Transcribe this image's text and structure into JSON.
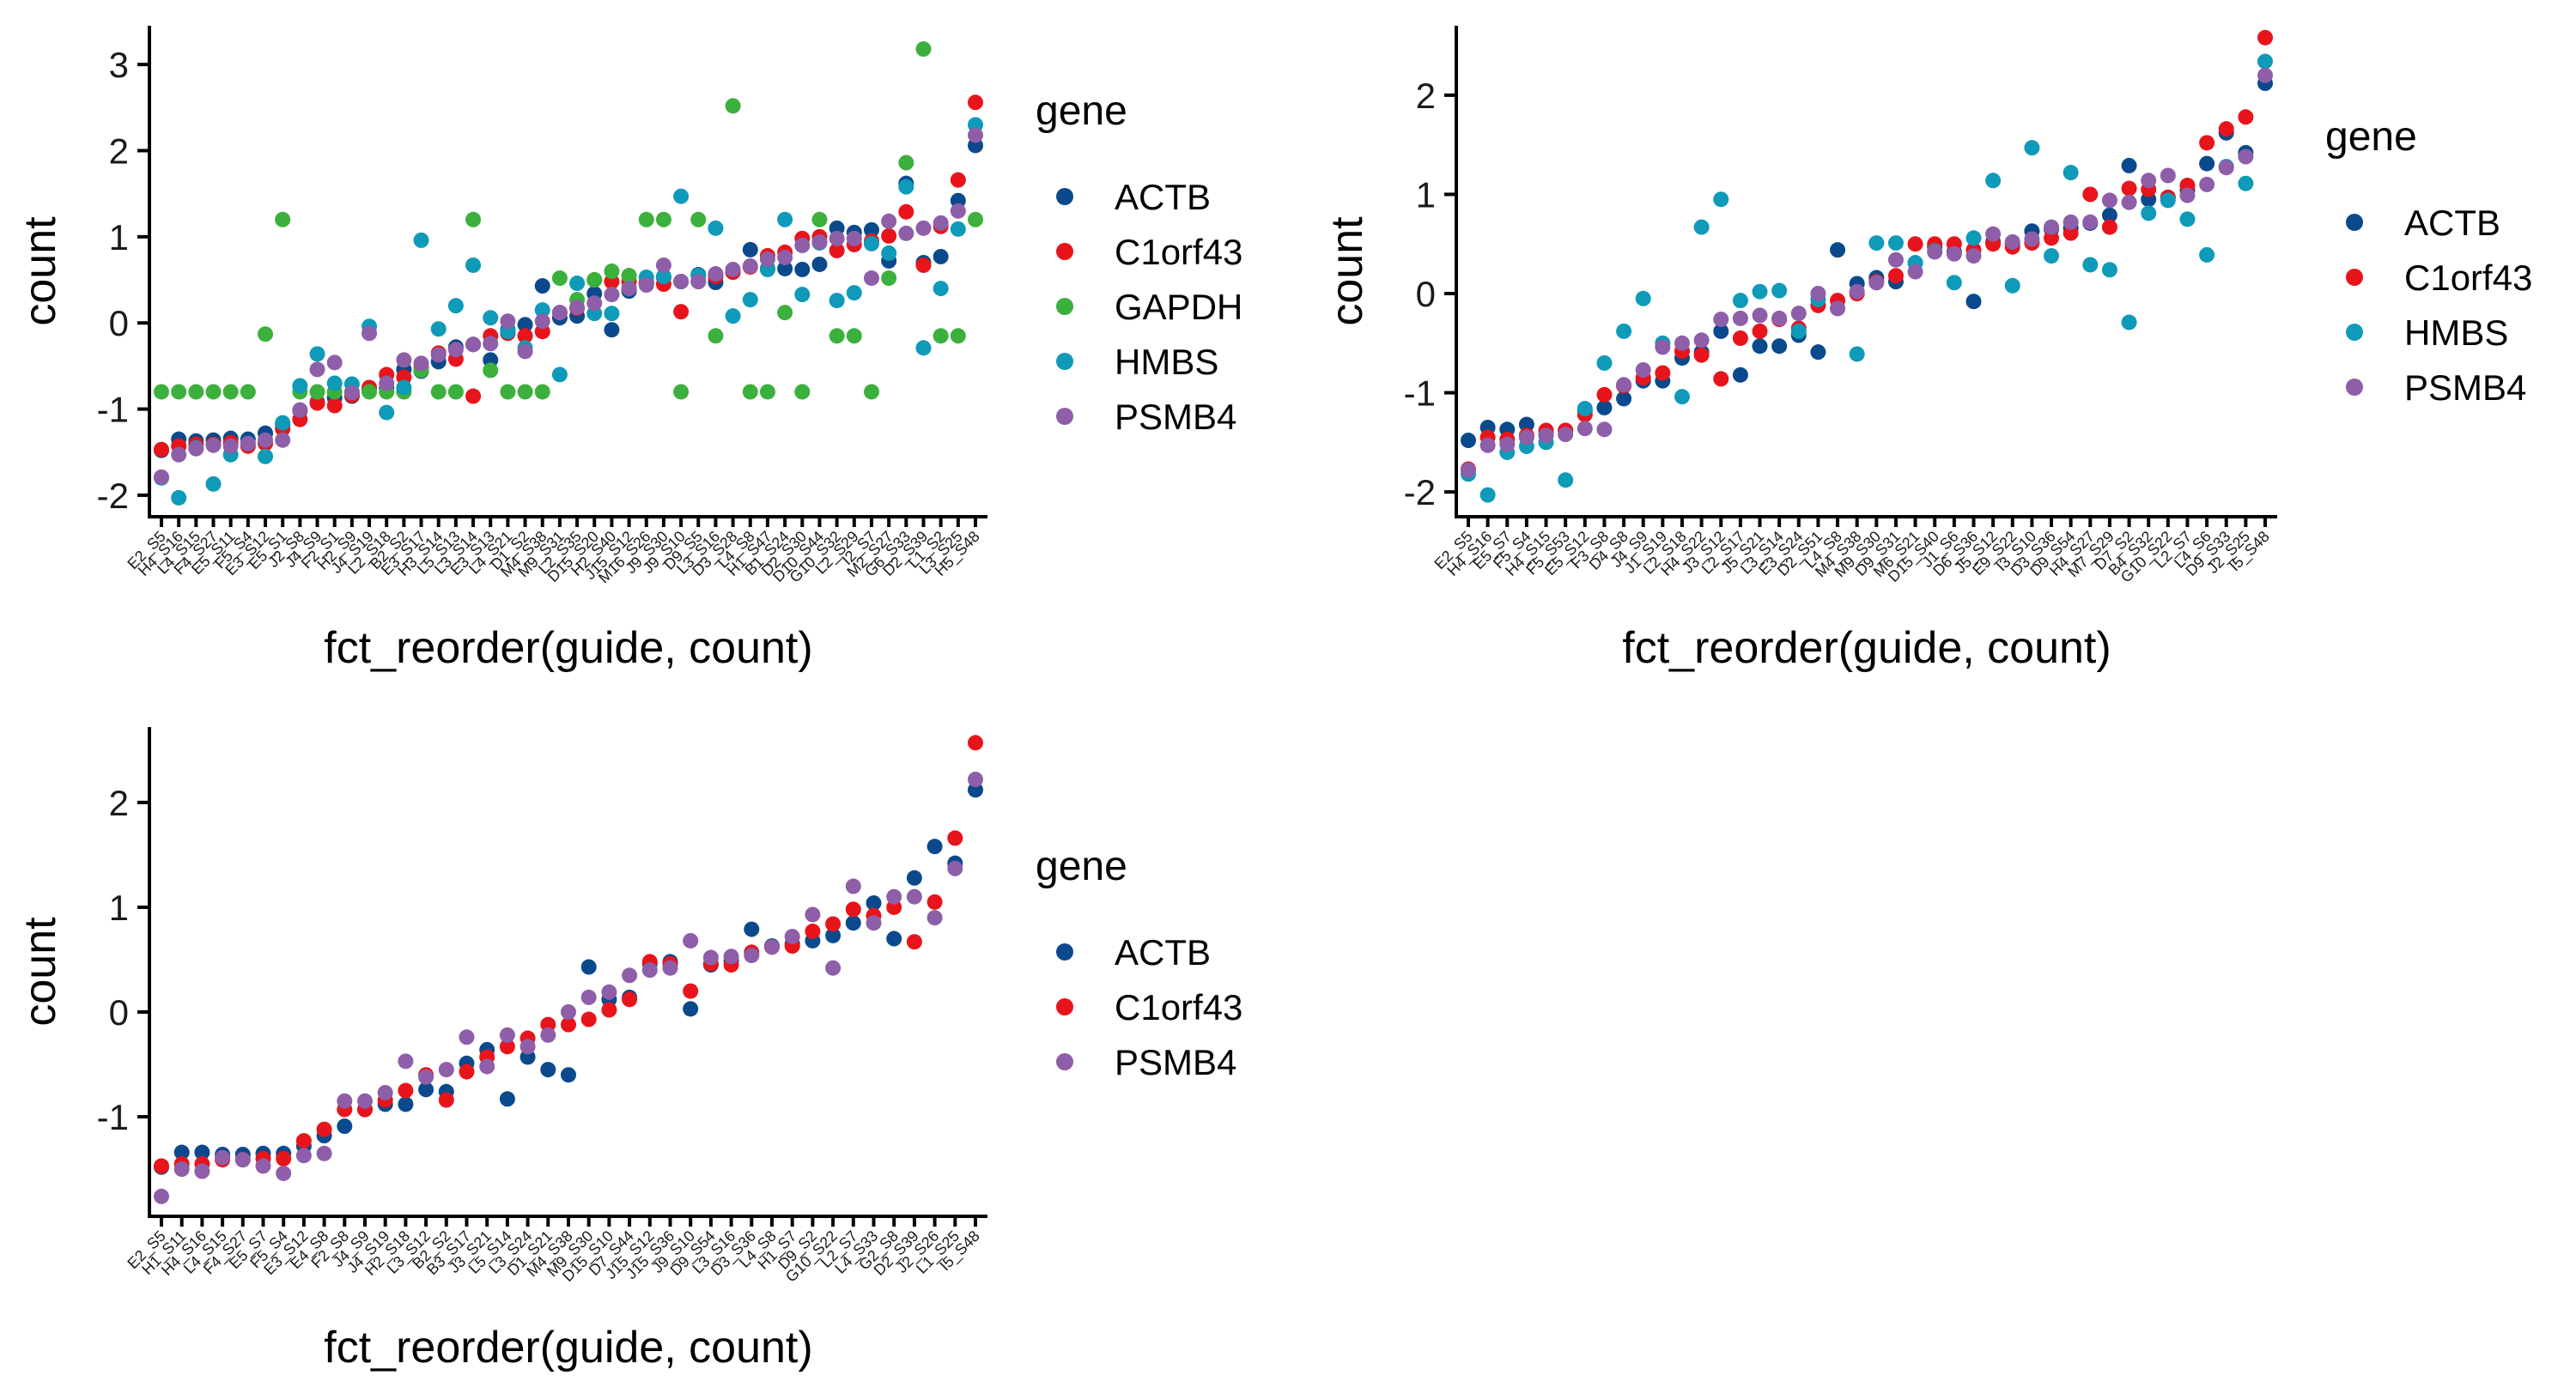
{
  "colors": {
    "ACTB": "#0a4a8c",
    "C1orf43": "#e8141b",
    "GAPDH": "#3cb03c",
    "HMBS": "#0e9ab8",
    "PSMB4": "#8e5ea8"
  },
  "chart_data": [
    {
      "type": "scatter",
      "xlabel": "fct_reorder(guide, count)",
      "ylabel": "count",
      "ylim": [
        -2.25,
        3.45
      ],
      "yticks": [
        -2,
        -1,
        0,
        1,
        2,
        3
      ],
      "ytick_labels": [
        "-2",
        "-1",
        "0",
        "1",
        "2",
        "3"
      ],
      "legend_title": "gene",
      "legend_position": "right",
      "grid": false,
      "categories": [
        "E2_S5",
        "H4_S16",
        "L4_S15",
        "F4_S27",
        "E5_S11",
        "F5_S4",
        "E3_S12",
        "E5_S1",
        "J2_S8",
        "J4_S9",
        "F2_S1",
        "H2_S9",
        "J4_S19",
        "L2_S18",
        "B2_S2",
        "E3_S17",
        "H3_S14",
        "L5_S13",
        "L3_S14",
        "E3_S13",
        "L4_S21",
        "D1_S2",
        "M4_S38",
        "M9_S31",
        "L2_S35",
        "D15_S20",
        "H2_S40",
        "J15_S12",
        "M16_S26",
        "J9_S30",
        "J9_S10",
        "D9_S5",
        "L3_S16",
        "D3_S28",
        "L4_S8",
        "H1_S47",
        "B1_S24",
        "D2_S30",
        "D10_S44",
        "G10_S32",
        "L2_S29",
        "I2_S7",
        "M2_S27",
        "G6_S33",
        "D2_S39",
        "L1_S2",
        "L3_S25",
        "H5_S48"
      ],
      "series": [
        {
          "name": "ACTB",
          "values": [
            -1.48,
            -1.35,
            -1.37,
            -1.36,
            -1.34,
            -1.35,
            -1.28,
            -1.18,
            -1.02,
            -0.92,
            -0.87,
            -0.85,
            -0.77,
            -0.76,
            -0.54,
            -0.56,
            -0.45,
            -0.28,
            -0.25,
            -0.43,
            -0.08,
            -0.02,
            0.43,
            0.06,
            0.08,
            0.34,
            -0.08,
            0.37,
            0.46,
            0.53,
            0.48,
            0.56,
            0.47,
            0.59,
            0.85,
            0.63,
            0.63,
            0.62,
            0.68,
            1.1,
            1.05,
            1.08,
            0.72,
            1.62,
            0.7,
            0.77,
            1.42,
            2.06
          ]
        },
        {
          "name": "C1orf43",
          "values": [
            -1.47,
            -1.43,
            -1.41,
            -1.41,
            -1.39,
            -1.43,
            -1.4,
            -1.23,
            -1.12,
            -0.93,
            -0.96,
            -0.84,
            -0.75,
            -0.6,
            -0.63,
            -0.52,
            -0.35,
            -0.42,
            -0.85,
            -0.15,
            -0.12,
            -0.15,
            -0.1,
            0.12,
            0.17,
            0.5,
            0.48,
            0.48,
            0.47,
            0.45,
            0.13,
            0.48,
            0.54,
            0.59,
            0.65,
            0.78,
            0.82,
            0.98,
            1.0,
            0.84,
            0.91,
            0.95,
            1.01,
            1.29,
            0.67,
            1.12,
            1.66,
            2.56
          ]
        },
        {
          "name": "GAPDH",
          "values": [
            -0.8,
            -0.8,
            -0.8,
            -0.8,
            -0.8,
            -0.8,
            -0.13,
            1.2,
            -0.8,
            -0.8,
            -0.8,
            -0.8,
            -0.8,
            -0.8,
            -0.8,
            -0.55,
            -0.8,
            -0.8,
            1.2,
            -0.55,
            -0.8,
            -0.8,
            -0.8,
            0.52,
            0.27,
            0.5,
            0.6,
            0.55,
            1.2,
            1.2,
            -0.8,
            1.2,
            -0.15,
            2.52,
            -0.8,
            -0.8,
            0.12,
            -0.8,
            1.2,
            -0.15,
            -0.15,
            -0.8,
            0.52,
            1.86,
            3.18,
            -0.15,
            -0.15,
            1.2
          ]
        },
        {
          "name": "HMBS",
          "values": [
            -1.8,
            -2.03,
            -1.45,
            -1.87,
            -1.53,
            -1.4,
            -1.55,
            -1.16,
            -0.73,
            -0.36,
            -0.7,
            -0.71,
            -0.04,
            -1.04,
            -0.75,
            0.96,
            -0.07,
            0.2,
            0.67,
            0.06,
            -0.1,
            -0.29,
            0.15,
            -0.6,
            0.46,
            0.11,
            0.11,
            0.4,
            0.53,
            0.54,
            1.47,
            0.55,
            1.1,
            0.08,
            0.27,
            0.62,
            1.2,
            0.33,
            0.93,
            0.26,
            0.35,
            0.92,
            0.81,
            1.58,
            -0.29,
            0.4,
            1.09,
            2.3
          ]
        },
        {
          "name": "PSMB4",
          "values": [
            -1.79,
            -1.53,
            -1.46,
            -1.42,
            -1.43,
            -1.4,
            -1.36,
            -1.36,
            -1.01,
            -0.54,
            -0.46,
            -0.81,
            -0.12,
            -0.7,
            -0.43,
            -0.47,
            -0.37,
            -0.31,
            -0.25,
            -0.24,
            0.02,
            -0.33,
            0.02,
            0.12,
            0.18,
            0.23,
            0.33,
            0.4,
            0.44,
            0.67,
            0.48,
            0.48,
            0.57,
            0.62,
            0.66,
            0.74,
            0.76,
            0.9,
            0.94,
            0.98,
            0.98,
            0.52,
            1.18,
            1.04,
            1.1,
            1.16,
            1.3,
            2.18
          ]
        }
      ]
    },
    {
      "type": "scatter",
      "xlabel": "fct_reorder(guide, count)",
      "ylabel": "count",
      "ylim": [
        -2.25,
        2.7
      ],
      "yticks": [
        -2,
        -1,
        0,
        1,
        2
      ],
      "ytick_labels": [
        "-2",
        "-1",
        "0",
        "1",
        "2"
      ],
      "legend_title": "gene",
      "legend_position": "right",
      "grid": false,
      "categories": [
        "E2_S5",
        "H4_S16",
        "E5_S7",
        "F5_S4",
        "H4_S15",
        "F5_S53",
        "E5_S12",
        "F3_S8",
        "D4_S8",
        "J4_S9",
        "J1_S19",
        "L2_S18",
        "H4_S22",
        "J3_S12",
        "L2_S17",
        "J5_S21",
        "L3_S14",
        "E3_S24",
        "D2_S51",
        "L4_S8",
        "M4_S38",
        "M9_S30",
        "D9_S31",
        "M6_S21",
        "D15_S40",
        "J1_S6",
        "D6_S36",
        "J5_S12",
        "E9_S22",
        "I3_S10",
        "D3_S36",
        "D9_S54",
        "H4_S27",
        "M7_S29",
        "D7_S2",
        "B4_S32",
        "G10_S22",
        "L2_S7",
        "L4_S6",
        "D9_S33",
        "J2_S25",
        "I5_S48"
      ],
      "series": [
        {
          "name": "ACTB",
          "values": [
            -1.48,
            -1.35,
            -1.37,
            -1.32,
            -1.42,
            -1.38,
            -1.18,
            -1.15,
            -1.06,
            -0.88,
            -0.88,
            -0.65,
            -0.59,
            -0.38,
            -0.82,
            -0.53,
            -0.53,
            -0.42,
            -0.59,
            0.44,
            0.1,
            0.16,
            0.12,
            0.31,
            0.47,
            0.42,
            -0.08,
            0.52,
            0.5,
            0.63,
            0.65,
            0.66,
            0.71,
            0.79,
            1.29,
            0.95,
            0.97,
            1.04,
            1.31,
            1.62,
            1.42,
            2.12
          ]
        },
        {
          "name": "C1orf43",
          "values": [
            -1.77,
            -1.45,
            -1.47,
            -1.43,
            -1.38,
            -1.38,
            -1.22,
            -1.02,
            -0.93,
            -0.85,
            -0.8,
            -0.58,
            -0.62,
            -0.86,
            -0.45,
            -0.38,
            -0.26,
            -0.35,
            -0.12,
            -0.07,
            0.0,
            0.12,
            0.18,
            0.5,
            0.5,
            0.5,
            0.44,
            0.5,
            0.47,
            0.51,
            0.56,
            0.61,
            1.0,
            0.67,
            1.06,
            1.05,
            0.97,
            1.09,
            1.52,
            1.66,
            1.78,
            2.58
          ]
        },
        {
          "name": "HMBS",
          "values": [
            -1.82,
            -2.03,
            -1.6,
            -1.54,
            -1.5,
            -1.88,
            -1.16,
            -0.7,
            -0.38,
            -0.05,
            -0.5,
            -1.04,
            0.67,
            0.95,
            -0.07,
            0.02,
            0.03,
            -0.38,
            -0.06,
            -0.15,
            -0.61,
            0.51,
            0.51,
            0.31,
            0.43,
            0.11,
            0.56,
            1.14,
            0.08,
            1.47,
            0.38,
            1.22,
            0.29,
            0.24,
            -0.29,
            0.81,
            0.94,
            0.75,
            0.39,
            1.28,
            1.11,
            2.34
          ]
        },
        {
          "name": "PSMB4",
          "values": [
            -1.78,
            -1.53,
            -1.52,
            -1.45,
            -1.43,
            -1.42,
            -1.36,
            -1.37,
            -0.92,
            -0.77,
            -0.54,
            -0.5,
            -0.47,
            -0.26,
            -0.25,
            -0.22,
            -0.25,
            -0.2,
            0.0,
            -0.15,
            0.02,
            0.11,
            0.34,
            0.22,
            0.42,
            0.4,
            0.38,
            0.6,
            0.52,
            0.55,
            0.67,
            0.72,
            0.72,
            0.94,
            0.92,
            1.14,
            1.19,
            0.99,
            1.1,
            1.27,
            1.38,
            2.2
          ]
        }
      ]
    },
    {
      "type": "scatter",
      "xlabel": "fct_reorder(guide, count)",
      "ylabel": "count",
      "ylim": [
        -1.95,
        2.72
      ],
      "yticks": [
        -1,
        0,
        1,
        2
      ],
      "ytick_labels": [
        "-1",
        "0",
        "1",
        "2"
      ],
      "legend_title": "gene",
      "legend_position": "right",
      "grid": false,
      "categories": [
        "E2_S5",
        "H1_S11",
        "H4_S16",
        "L4_S15",
        "F4_S27",
        "E5_S7",
        "F5_S4",
        "E3_S12",
        "E4_S8",
        "F2_S8",
        "J4_S9",
        "J4_S19",
        "H2_S18",
        "L3_S12",
        "B2_S2",
        "B3_S17",
        "J3_S21",
        "L5_S14",
        "L3_S24",
        "D1_S21",
        "M4_S38",
        "M9_S30",
        "D15_S10",
        "D7_S44",
        "J15_S12",
        "J15_S36",
        "J9_S10",
        "D9_S54",
        "L3_S16",
        "D3_S36",
        "L4_S8",
        "H1_S7",
        "D9_S2",
        "G10_S22",
        "L2_S7",
        "L4_S33",
        "G2_S8",
        "D2_S39",
        "J2_S26",
        "L1_S25",
        "I5_S48"
      ],
      "series": [
        {
          "name": "ACTB",
          "values": [
            -1.48,
            -1.34,
            -1.34,
            -1.36,
            -1.36,
            -1.35,
            -1.35,
            -1.28,
            -1.18,
            -1.09,
            -0.93,
            -0.88,
            -0.88,
            -0.74,
            -0.76,
            -0.49,
            -0.36,
            -0.83,
            -0.43,
            -0.55,
            -0.6,
            0.43,
            0.12,
            0.14,
            0.46,
            0.48,
            0.03,
            0.45,
            0.49,
            0.79,
            0.63,
            0.65,
            0.68,
            0.73,
            0.85,
            1.04,
            0.7,
            1.28,
            1.58,
            1.42,
            2.12
          ]
        },
        {
          "name": "C1orf43",
          "values": [
            -1.47,
            -1.45,
            -1.45,
            -1.41,
            -1.41,
            -1.4,
            -1.4,
            -1.23,
            -1.12,
            -0.93,
            -0.93,
            -0.84,
            -0.75,
            -0.6,
            -0.84,
            -0.57,
            -0.43,
            -0.33,
            -0.25,
            -0.12,
            -0.12,
            -0.07,
            0.02,
            0.12,
            0.48,
            0.46,
            0.2,
            0.46,
            0.45,
            0.57,
            0.62,
            0.63,
            0.77,
            0.84,
            0.98,
            0.92,
            1.0,
            0.67,
            1.05,
            1.66,
            2.57
          ]
        },
        {
          "name": "PSMB4",
          "values": [
            -1.76,
            -1.5,
            -1.52,
            -1.39,
            -1.41,
            -1.47,
            -1.54,
            -1.37,
            -1.35,
            -0.85,
            -0.85,
            -0.77,
            -0.47,
            -0.62,
            -0.55,
            -0.24,
            -0.52,
            -0.22,
            -0.33,
            -0.22,
            0.0,
            0.14,
            0.19,
            0.35,
            0.4,
            0.42,
            0.68,
            0.52,
            0.53,
            0.54,
            0.62,
            0.72,
            0.93,
            0.42,
            1.2,
            0.85,
            1.1,
            1.1,
            0.9,
            1.37,
            2.22
          ]
        }
      ]
    }
  ]
}
